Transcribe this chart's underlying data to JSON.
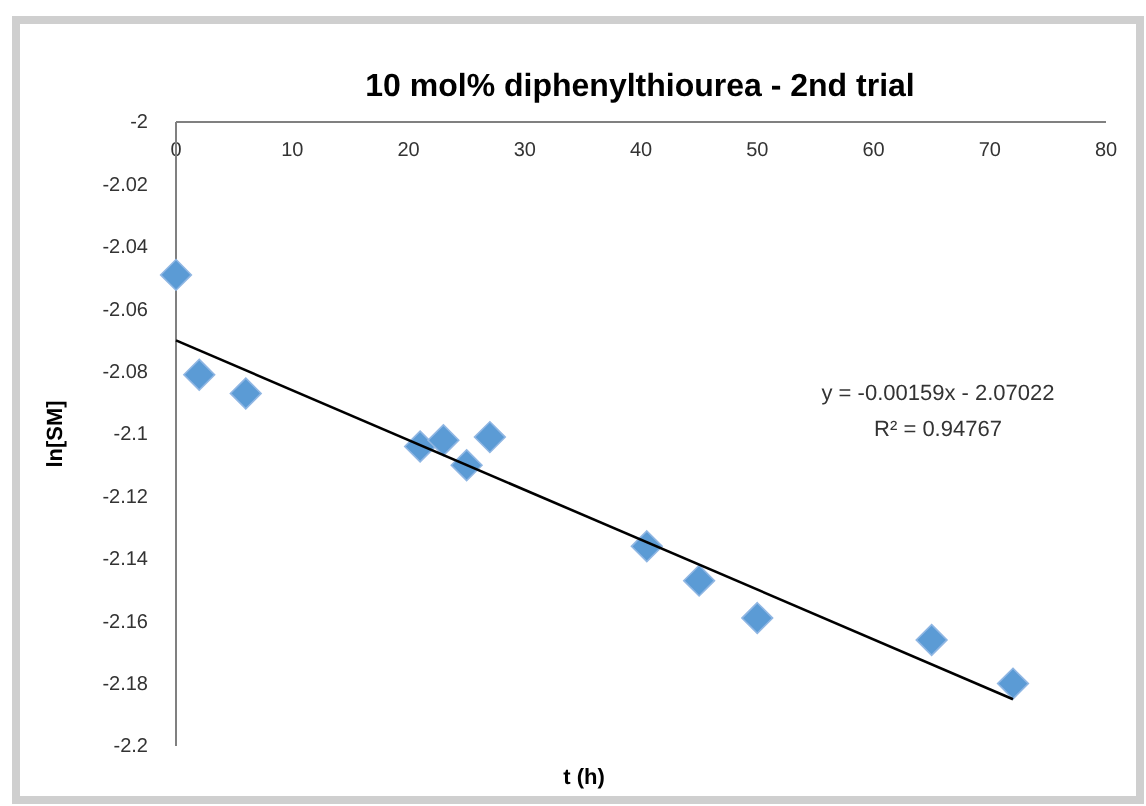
{
  "chart_data": {
    "type": "scatter",
    "title": "10 mol% diphenylthiourea  - 2nd trial",
    "xlabel": "t (h)",
    "ylabel": "ln[SM]",
    "x": [
      0,
      2,
      6,
      21,
      23,
      25,
      27,
      40.5,
      45,
      50,
      65,
      72
    ],
    "series": [
      {
        "color": "#5b9bd5",
        "marker": "diamond",
        "values": [
          -2.049,
          -2.081,
          -2.087,
          -2.104,
          -2.102,
          -2.11,
          -2.101,
          -2.136,
          -2.147,
          -2.159,
          -2.166,
          -2.18
        ]
      },
      {
        "type": "line",
        "color": "#000000",
        "marker": "none",
        "line_style": "solid",
        "x": [
          0,
          72
        ],
        "values": [
          -2.07,
          -2.185
        ]
      }
    ],
    "xlim": [
      0,
      80
    ],
    "xticks": [
      0,
      10,
      20,
      30,
      40,
      50,
      60,
      70,
      80
    ],
    "ylim": [
      -2.2,
      -2
    ],
    "yticks": [
      {
        "value": -2.2,
        "label": "-2.2"
      },
      -2.18,
      -2.16,
      -2.14,
      -2.12,
      {
        "value": -2.1,
        "label": "-2.1"
      },
      -2.08,
      -2.06,
      -2.04,
      -2.02,
      -2
    ],
    "grid": false,
    "annotations": [
      "y = -0.00159x - 2.07022",
      "R² = 0.94767"
    ]
  }
}
